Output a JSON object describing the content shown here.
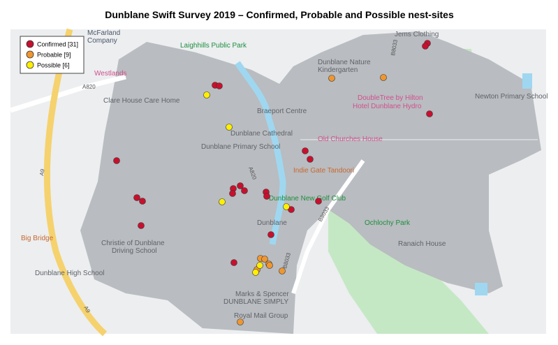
{
  "header": {
    "title": "Dunblane Swift Survey 2019 – Confirmed, Probable and Possible nest-sites"
  },
  "legend": {
    "items": [
      {
        "label": "Confirmed [31]",
        "color": "#c8102e"
      },
      {
        "label": "Probable [9]",
        "color": "#f0962f"
      },
      {
        "label": "Possible [6]",
        "color": "#ffef00"
      }
    ]
  },
  "map": {
    "places": [
      "McFarland",
      "Company",
      "Laighhills Public Park",
      "Dunblane Nature",
      "Kindergarten",
      "Jems Clothing",
      "Westlands",
      "DoubleTree by Hilton",
      "Hotel Dunblane Hydro",
      "Newton Primary School",
      "Clare House Care Home",
      "Braeport Centre",
      "Dunblane Cathedral",
      "Dunblane Primary School",
      "Old Churches House",
      "Indie Gate Tandoori",
      "Dunblane New Golf Club",
      "Dunblane",
      "Ochlochy Park",
      "Big Bridge",
      "Christie of Dunblane",
      "Driving School",
      "Ranaich House",
      "Dunblane High School",
      "Marks & Spencer",
      "DUNBLANE SIMPLY",
      "Royal Mail Group",
      "A820",
      "A9",
      "A9",
      "B8033",
      "B8033",
      "A820",
      "B8033"
    ]
  }
}
